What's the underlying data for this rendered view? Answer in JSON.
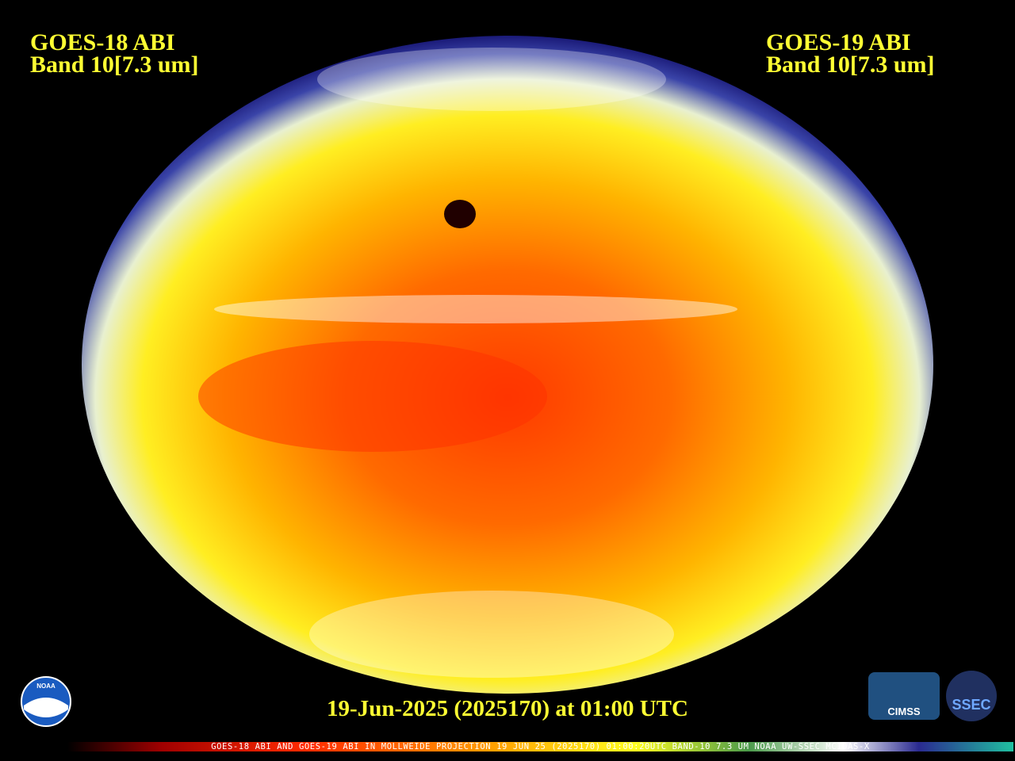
{
  "left_label": {
    "line1": "GOES-18 ABI",
    "line2": "Band 10[7.3 um]"
  },
  "right_label": {
    "line1": "GOES-19 ABI",
    "line2": "Band 10[7.3 um]"
  },
  "timestamp": "19-Jun-2025 (2025170) at 01:00 UTC",
  "colorbar_caption": "GOES-18 ABI AND GOES-19 ABI IN MOLLWEIDE PROJECTION 19 JUN 25 (2025170) 01:00:20UTC BAND-10 7.3 UM NOAA UW-SSEC MCIDAS-X",
  "logos": {
    "noaa": "NOAA",
    "cimss": "CIMSS",
    "ssec": "SSEC"
  }
}
